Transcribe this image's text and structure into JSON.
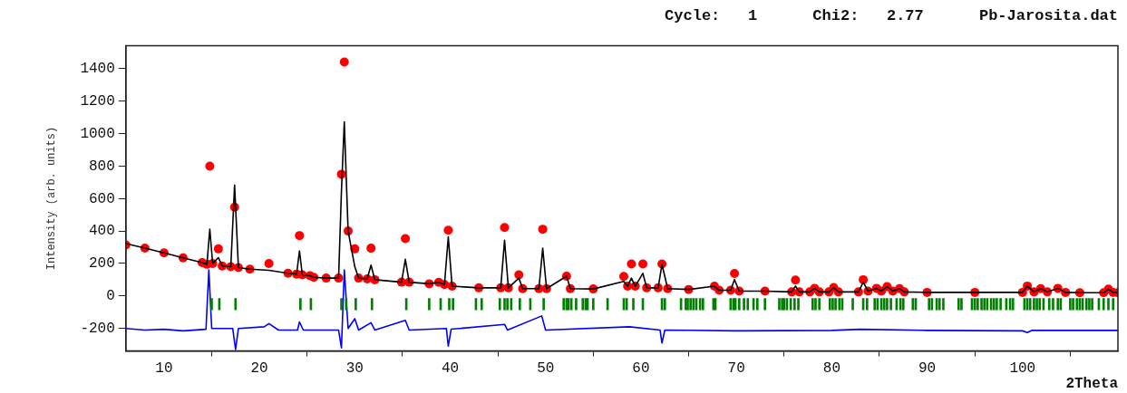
{
  "chart_data": {
    "type": "line",
    "title": "Cycle:   1      Chi2:   2.77      Pb-Jarosita.dat",
    "xlabel": "2Theta",
    "ylabel": "Intensity (arb. units)",
    "xlim": [
      6,
      110
    ],
    "ylim": [
      -339,
      1542
    ],
    "xticks": [
      10,
      20,
      30,
      40,
      50,
      60,
      70,
      80,
      90,
      100
    ],
    "yticks": [
      -200,
      0,
      200,
      400,
      600,
      800,
      1000,
      1200,
      1400
    ],
    "grid": false,
    "legend": false,
    "series": [
      {
        "type": "scatter",
        "marker": "circle",
        "color": "#ff0000",
        "x": [
          6,
          8,
          10,
          12,
          14,
          14.5,
          14.8,
          15.1,
          15.7,
          16.1,
          17,
          17.4,
          17.8,
          19,
          21,
          23,
          23.9,
          24.2,
          24.5,
          25.3,
          25.7,
          27,
          28.3,
          28.6,
          28.9,
          29.3,
          30,
          30.4,
          31.3,
          31.7,
          32.1,
          34.9,
          35.3,
          35.7,
          37.8,
          38.8,
          39.4,
          39.8,
          40.2,
          43,
          45.3,
          45.7,
          46.1,
          47.2,
          47.6,
          49.3,
          49.7,
          50.1,
          52.2,
          52.6,
          55,
          58.2,
          58.6,
          59,
          59.4,
          60.2,
          60.6,
          61.8,
          62.2,
          62.8,
          65,
          67.7,
          68.2,
          69.4,
          69.8,
          70.3,
          73,
          75.8,
          76.2,
          76.6,
          77.7,
          78.2,
          78.7,
          79.7,
          80.2,
          80.7,
          82.8,
          83.3,
          83.8,
          84.7,
          85.2,
          85.8,
          86.4,
          87.1,
          87.6,
          90,
          95,
          100,
          100.5,
          101.2,
          101.9,
          102.6,
          103.7,
          104.5,
          106,
          108.5,
          109,
          109.5,
          110
        ],
        "values": [
          314,
          295,
          265,
          235,
          205,
          195,
          800,
          200,
          290,
          185,
          180,
          547,
          175,
          165,
          200,
          140,
          135,
          372,
          130,
          125,
          115,
          110,
          110,
          750,
          1441,
          400,
          290,
          110,
          105,
          294,
          100,
          85,
          353,
          85,
          75,
          84,
          70,
          405,
          60,
          50,
          50,
          422,
          50,
          130,
          45,
          45,
          411,
          45,
          122,
          45,
          43,
          120,
          60,
          197,
          60,
          197,
          50,
          50,
          197,
          45,
          40,
          60,
          35,
          35,
          139,
          30,
          30,
          25,
          98,
          25,
          25,
          47,
          25,
          25,
          52,
          25,
          25,
          100,
          30,
          47,
          30,
          57,
          30,
          45,
          25,
          22,
          22,
          22,
          61,
          25,
          45,
          25,
          47,
          22,
          20,
          20,
          42,
          22,
          20
        ]
      },
      {
        "color": "#000000",
        "x": [
          6,
          8,
          10,
          12,
          14,
          14.5,
          14.8,
          15.1,
          15.7,
          16.1,
          17,
          17.4,
          17.8,
          19,
          21,
          23,
          23.9,
          24.2,
          24.5,
          25.3,
          25.7,
          27,
          28.3,
          28.6,
          28.9,
          29.3,
          30,
          30.4,
          31.3,
          31.7,
          32.1,
          34.9,
          35.3,
          35.7,
          37.8,
          38.8,
          39.4,
          39.8,
          40.2,
          43,
          45.3,
          45.7,
          46.1,
          47.2,
          47.6,
          49.3,
          49.7,
          50.1,
          52.2,
          52.6,
          55,
          58.2,
          58.6,
          59,
          59.4,
          60.2,
          60.6,
          61.8,
          62.2,
          62.8,
          65,
          67.7,
          68.2,
          69.4,
          69.8,
          70.3,
          73,
          75.8,
          76.2,
          76.6,
          77.7,
          78.2,
          78.7,
          79.7,
          80.2,
          80.7,
          82.8,
          83.3,
          83.8,
          84.7,
          85.2,
          85.8,
          86.4,
          87.1,
          87.6,
          90,
          95,
          100,
          100.5,
          101.2,
          101.9,
          102.6,
          103.7,
          104.5,
          106,
          108.5,
          109,
          109.5,
          110
        ],
        "values": [
          323,
          295,
          265,
          235,
          205,
          195,
          411,
          200,
          236,
          185,
          180,
          684,
          175,
          165,
          158,
          140,
          135,
          277,
          130,
          125,
          115,
          110,
          110,
          644,
          1072,
          400,
          180,
          110,
          105,
          190,
          100,
          85,
          226,
          85,
          75,
          84,
          70,
          364,
          60,
          50,
          50,
          343,
          50,
          110,
          45,
          45,
          294,
          45,
          122,
          45,
          43,
          90,
          60,
          110,
          60,
          139,
          50,
          50,
          194,
          45,
          40,
          60,
          35,
          35,
          101,
          30,
          30,
          25,
          61,
          25,
          25,
          47,
          25,
          25,
          52,
          25,
          25,
          85,
          30,
          47,
          30,
          57,
          30,
          45,
          25,
          22,
          22,
          22,
          61,
          25,
          45,
          25,
          47,
          22,
          20,
          20,
          42,
          22,
          20
        ]
      },
      {
        "color": "#0000ff",
        "x": [
          6,
          8,
          10,
          12,
          14.4,
          14.7,
          15,
          17.2,
          17.5,
          17.8,
          20.5,
          21,
          22,
          24,
          24.2,
          24.6,
          28.3,
          28.6,
          28.9,
          29.3,
          30,
          30.4,
          31.7,
          32.1,
          35.3,
          35.7,
          39.6,
          39.8,
          40.1,
          45.7,
          46,
          49.6,
          50,
          58.8,
          62,
          62.2,
          62.5,
          70,
          80,
          83,
          90,
          100,
          100.5,
          101,
          110
        ],
        "values": [
          -200,
          -210,
          -205,
          -215,
          -205,
          160,
          -200,
          -200,
          -330,
          -200,
          -190,
          -170,
          -210,
          -210,
          -160,
          -210,
          -210,
          -320,
          160,
          -200,
          -140,
          -210,
          -165,
          -210,
          -150,
          -210,
          -200,
          -309,
          -205,
          -175,
          -210,
          -123,
          -210,
          -190,
          -210,
          -290,
          -210,
          -215,
          -212,
          -205,
          -212,
          -215,
          -225,
          -212,
          -212
        ]
      },
      {
        "type": "bar",
        "color": "#008000",
        "x": [
          15.0,
          15.8,
          17.5,
          24.3,
          25.4,
          28.6,
          29.1,
          30.1,
          31.8,
          35.4,
          37.8,
          39.0,
          39.9,
          40.3,
          42.7,
          43.3,
          45.2,
          45.7,
          46.0,
          46.4,
          47.3,
          48.4,
          49.8,
          51.9,
          52.2,
          52.4,
          52.7,
          53.2,
          53.9,
          54.2,
          54.4,
          55.0,
          56.5,
          58.2,
          58.5,
          59.2,
          60.2,
          62.2,
          62.5,
          64.2,
          64.7,
          64.9,
          65.2,
          65.5,
          65.8,
          66.2,
          66.5,
          67.6,
          67.8,
          69.4,
          69.7,
          69.9,
          70.3,
          70.8,
          71.2,
          71.8,
          72.2,
          73.0,
          74.5,
          74.8,
          75.0,
          75.3,
          75.7,
          76.1,
          76.5,
          78.0,
          78.3,
          78.7,
          79.8,
          80.1,
          80.4,
          80.8,
          81.1,
          82.2,
          83.3,
          83.7,
          84.5,
          84.8,
          85.2,
          85.5,
          85.8,
          86.2,
          86.8,
          87.2,
          87.5,
          88.5,
          88.8,
          90.2,
          90.5,
          91.0,
          91.3,
          91.7,
          93.3,
          93.6,
          94.7,
          95.0,
          95.3,
          95.7,
          96.0,
          96.3,
          96.7,
          97.0,
          97.3,
          97.7,
          98.3,
          98.7,
          99.0,
          100.2,
          100.5,
          100.8,
          101.2,
          101.5,
          101.8,
          102.2,
          102.8,
          103.2,
          103.7,
          104.0,
          105.0,
          105.3,
          105.7,
          106.0,
          106.3,
          106.7,
          107.0,
          107.3,
          108.0,
          108.5,
          109.0,
          109.5
        ],
        "base": [
          -85,
          -85,
          -85,
          -85,
          -85,
          -85,
          -85,
          -85,
          -85,
          -85,
          -85,
          -85,
          -85,
          -85,
          -85,
          -85,
          -85,
          -85,
          -85,
          -85,
          -85,
          -85,
          -85,
          -85,
          -85,
          -85,
          -85,
          -85,
          -85,
          -85,
          -85,
          -85,
          -85,
          -85,
          -85,
          -85,
          -85,
          -85,
          -85,
          -85,
          -85,
          -85,
          -85,
          -85,
          -85,
          -85,
          -85,
          -85,
          -85,
          -85,
          -85,
          -85,
          -85,
          -85,
          -85,
          -85,
          -85,
          -85,
          -85,
          -85,
          -85,
          -85,
          -85,
          -85,
          -85,
          -85,
          -85,
          -85,
          -85,
          -85,
          -85,
          -85,
          -85,
          -85,
          -85,
          -85,
          -85,
          -85,
          -85,
          -85,
          -85,
          -85,
          -85,
          -85,
          -85,
          -85,
          -85,
          -85,
          -85,
          -85,
          -85,
          -85,
          -85,
          -85,
          -85,
          -85,
          -85,
          -85,
          -85,
          -85,
          -85,
          -85,
          -85,
          -85,
          -85,
          -85,
          -85,
          -85,
          -85,
          -85,
          -85,
          -85,
          -85,
          -85,
          -85,
          -85,
          -85,
          -85,
          -85,
          -85,
          -85,
          -85,
          -85,
          -85,
          -85,
          -85,
          -85,
          -85,
          -85,
          -85
        ],
        "values": [
          70,
          70,
          70,
          70,
          70,
          70,
          70,
          70,
          70,
          70,
          70,
          70,
          70,
          70,
          70,
          70,
          70,
          70,
          70,
          70,
          70,
          70,
          70,
          70,
          70,
          70,
          70,
          70,
          70,
          70,
          70,
          70,
          70,
          70,
          70,
          70,
          70,
          70,
          70,
          70,
          70,
          70,
          70,
          70,
          70,
          70,
          70,
          70,
          70,
          70,
          70,
          70,
          70,
          70,
          70,
          70,
          70,
          70,
          70,
          70,
          70,
          70,
          70,
          70,
          70,
          70,
          70,
          70,
          70,
          70,
          70,
          70,
          70,
          70,
          70,
          70,
          70,
          70,
          70,
          70,
          70,
          70,
          70,
          70,
          70,
          70,
          70,
          70,
          70,
          70,
          70,
          70,
          70,
          70,
          70,
          70,
          70,
          70,
          70,
          70,
          70,
          70,
          70,
          70,
          70,
          70,
          70,
          70,
          70,
          70,
          70,
          70,
          70,
          70,
          70,
          70,
          70,
          70,
          70,
          70,
          70,
          70,
          70,
          70,
          70,
          70,
          70,
          70,
          70,
          70
        ]
      }
    ]
  }
}
